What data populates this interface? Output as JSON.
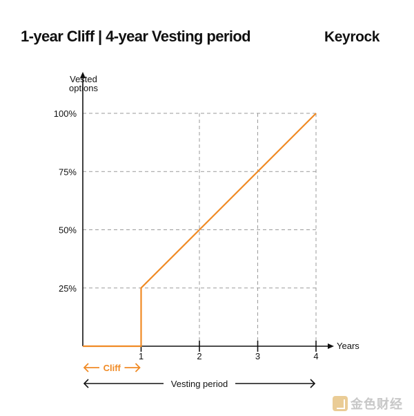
{
  "header": {
    "title": "1-year Cliff | 4-year Vesting period",
    "brand": "Keyrock"
  },
  "chart_data": {
    "type": "line",
    "title": "1-year Cliff | 4-year Vesting period",
    "ylabel_line1": "Vested",
    "ylabel_line2": "options",
    "xlabel": "Years",
    "x_ticks": [
      "1",
      "2",
      "3",
      "4"
    ],
    "y_ticks": [
      "25%",
      "50%",
      "75%",
      "100%"
    ],
    "y_tick_values": [
      25,
      50,
      75,
      100
    ],
    "x_tick_values": [
      1,
      2,
      3,
      4
    ],
    "xlim": [
      0,
      4
    ],
    "ylim": [
      0,
      100
    ],
    "grid": "dashed guides to points",
    "series": [
      {
        "x": [
          0,
          1,
          1,
          2,
          3,
          4
        ],
        "y": [
          0,
          0,
          25,
          50,
          75,
          100
        ],
        "color": "#f08a24"
      }
    ],
    "annotations": {
      "cliff_label": "Cliff",
      "cliff_range": [
        0,
        1
      ],
      "cliff_color": "#f08a24",
      "vesting_label": "Vesting period",
      "vesting_range": [
        0,
        4
      ]
    }
  },
  "watermark": {
    "text": "金色财经"
  }
}
